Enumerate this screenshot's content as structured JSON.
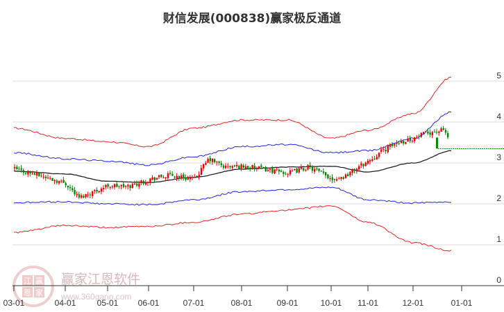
{
  "title": "财信发展(000838)赢家极反通道",
  "watermark": {
    "brand": "赢家江恩软件",
    "url": "www.360gann.com",
    "logo_chars": [
      "江",
      "赢",
      "恩",
      "家"
    ]
  },
  "colors": {
    "outer_band": "#ee2222",
    "inner_band": "#2222ee",
    "mid_line": "#222222",
    "up_candle": "#ee0000",
    "down_candle": "#008800",
    "last_price_line": "#008800",
    "grid": "#dddddd"
  },
  "chart_data": {
    "type": "candlestick-channel",
    "title": "财信发展(000838)赢家极反通道",
    "xlabel": "",
    "ylabel": "",
    "ylim": [
      0,
      5.2
    ],
    "yticks": [
      0,
      1,
      2,
      3,
      4,
      5
    ],
    "xticks": [
      "03-01",
      "04-01",
      "05-01",
      "06-01",
      "07-01",
      "08-01",
      "09-01",
      "10-01",
      "11-01",
      "12-01",
      "01-01"
    ],
    "grid": true,
    "last_price": 3.35,
    "series": [
      {
        "name": "outer_upper",
        "color": "#ee2222",
        "x": [
          "03-01",
          "04-01",
          "05-01",
          "06-01",
          "07-01",
          "08-01",
          "09-01",
          "10-01",
          "11-01",
          "12-01",
          "12-25"
        ],
        "values": [
          3.85,
          3.6,
          3.52,
          3.4,
          3.85,
          4.05,
          4.05,
          3.6,
          3.8,
          4.2,
          5.1
        ]
      },
      {
        "name": "inner_upper",
        "color": "#2222ee",
        "x": [
          "03-01",
          "04-01",
          "05-01",
          "06-01",
          "07-01",
          "08-01",
          "09-01",
          "10-01",
          "11-01",
          "12-01",
          "12-25"
        ],
        "values": [
          3.25,
          3.1,
          3.05,
          2.95,
          3.15,
          3.4,
          3.45,
          3.25,
          3.3,
          3.6,
          4.25
        ]
      },
      {
        "name": "mid",
        "color": "#222222",
        "x": [
          "03-01",
          "04-01",
          "05-01",
          "06-01",
          "07-01",
          "08-01",
          "09-01",
          "10-01",
          "11-01",
          "12-01",
          "12-25"
        ],
        "values": [
          2.8,
          2.73,
          2.55,
          2.52,
          2.65,
          2.85,
          2.9,
          2.92,
          2.78,
          3.0,
          3.3
        ]
      },
      {
        "name": "inner_lower",
        "color": "#2222ee",
        "x": [
          "03-01",
          "04-01",
          "05-01",
          "06-01",
          "07-01",
          "08-01",
          "09-01",
          "10-01",
          "11-01",
          "12-01",
          "12-25"
        ],
        "values": [
          2.03,
          2.05,
          2.0,
          1.98,
          2.1,
          2.3,
          2.35,
          2.4,
          2.1,
          2.02,
          2.05
        ]
      },
      {
        "name": "outer_lower",
        "color": "#ee2222",
        "x": [
          "03-01",
          "04-01",
          "05-01",
          "06-01",
          "07-01",
          "08-01",
          "09-01",
          "10-01",
          "11-01",
          "12-01",
          "12-25"
        ],
        "values": [
          1.3,
          1.47,
          1.42,
          1.45,
          1.55,
          1.75,
          1.85,
          1.95,
          1.55,
          1.05,
          0.85
        ]
      },
      {
        "name": "close",
        "color": "#008800",
        "x": [
          "03-01",
          "03-15",
          "04-01",
          "04-10",
          "05-01",
          "05-15",
          "06-01",
          "06-15",
          "07-01",
          "07-10",
          "07-20",
          "08-01",
          "08-15",
          "09-01",
          "09-15",
          "10-01",
          "10-10",
          "10-20",
          "11-01",
          "11-10",
          "11-20",
          "12-01",
          "12-10",
          "12-20",
          "12-25"
        ],
        "values": [
          2.85,
          2.7,
          2.5,
          2.15,
          2.45,
          2.42,
          2.6,
          2.7,
          2.6,
          3.1,
          2.9,
          2.92,
          2.85,
          2.75,
          2.9,
          2.62,
          2.65,
          2.85,
          3.05,
          3.3,
          3.5,
          3.6,
          3.75,
          3.8,
          3.35
        ]
      }
    ]
  }
}
